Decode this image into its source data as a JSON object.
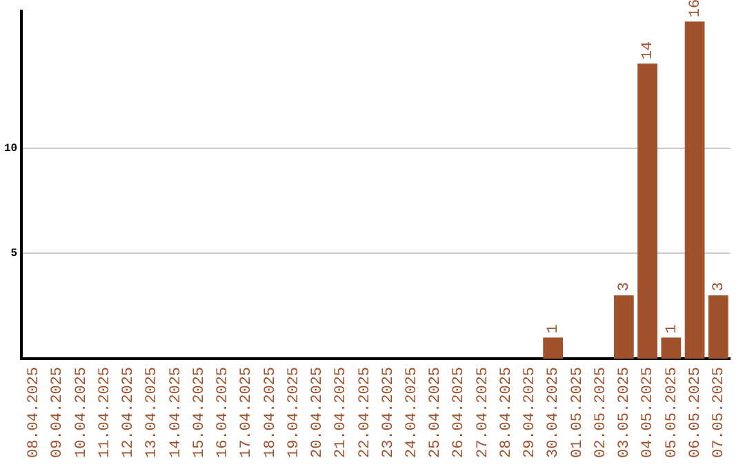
{
  "chart_data": {
    "type": "bar",
    "categories": [
      "08.04.2025",
      "09.04.2025",
      "10.04.2025",
      "11.04.2025",
      "12.04.2025",
      "13.04.2025",
      "14.04.2025",
      "15.04.2025",
      "16.04.2025",
      "17.04.2025",
      "18.04.2025",
      "19.04.2025",
      "20.04.2025",
      "21.04.2025",
      "22.04.2025",
      "23.04.2025",
      "24.04.2025",
      "25.04.2025",
      "26.04.2025",
      "27.04.2025",
      "28.04.2025",
      "29.04.2025",
      "30.04.2025",
      "01.05.2025",
      "02.05.2025",
      "03.05.2025",
      "04.05.2025",
      "05.05.2025",
      "06.05.2025",
      "07.05.2025"
    ],
    "values": [
      0,
      0,
      0,
      0,
      0,
      0,
      0,
      0,
      0,
      0,
      0,
      0,
      0,
      0,
      0,
      0,
      0,
      0,
      0,
      0,
      0,
      0,
      1,
      0,
      0,
      3,
      14,
      1,
      16,
      3
    ],
    "value_labels": [
      null,
      null,
      null,
      null,
      null,
      null,
      null,
      null,
      null,
      null,
      null,
      null,
      null,
      null,
      null,
      null,
      null,
      null,
      null,
      null,
      null,
      null,
      "1",
      null,
      null,
      "3",
      "14",
      "1",
      "16",
      "3"
    ],
    "color": "#a0522d",
    "ylim": [
      0,
      16.5
    ],
    "yticks": [
      5,
      10
    ],
    "grid": "y",
    "legend": false
  }
}
